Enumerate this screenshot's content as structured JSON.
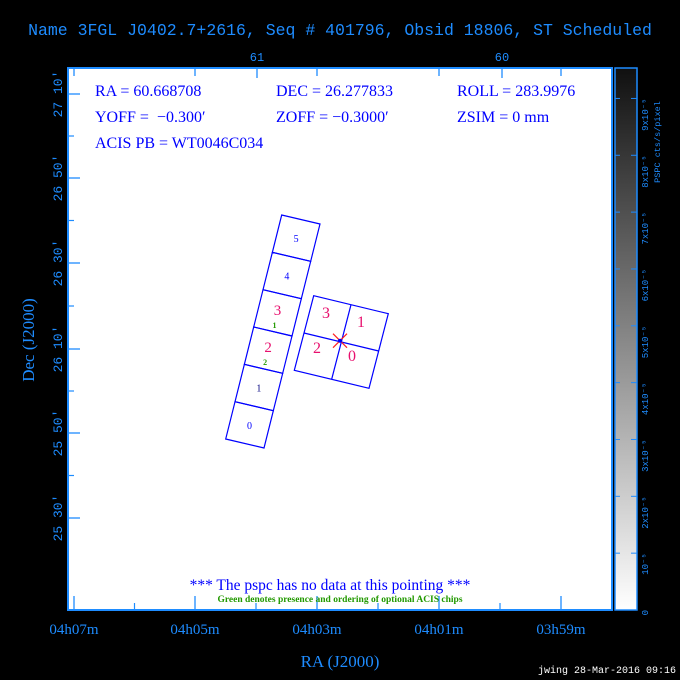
{
  "title": "Name 3FGL J0402.7+2616, Seq # 401796, Obsid 18806, ST Scheduled",
  "params": {
    "ra": "RA = 60.668708",
    "dec": "DEC = 26.277833",
    "roll": "ROLL = 283.9976",
    "yoff": "YOFF =  −0.300′",
    "zoff": "ZOFF = −0.3000′",
    "zsim": "ZSIM = 0 mm",
    "acis_pb": "ACIS PB = WT0046C034"
  },
  "notes": {
    "no_data": "*** The pspc has no data at this pointing ***",
    "optional": "Green denotes presence and ordering of optional ACIS chips"
  },
  "footer": "jwing 28-Mar-2016 09:16",
  "colors": {
    "axis": "#1e8cff",
    "text": "#0000ff",
    "chip_outline": "#0000ff",
    "imaging_label": "#e8106e",
    "optional_label": "#229900",
    "aimpoint": "#ff2020"
  },
  "chart_data": {
    "type": "scatter",
    "xlabel": "RA (J2000)",
    "ylabel": "Dec (J2000)",
    "x_ticks_bottom": [
      "04h07m",
      "04h05m",
      "04h03m",
      "04h01m",
      "03h59m"
    ],
    "x_ticks_top": [
      "61",
      "60"
    ],
    "y_ticks": [
      "27 10′",
      "26 50′",
      "26 30′",
      "26 10′",
      "25 50′",
      "25 30′"
    ],
    "colorbar": {
      "label": "PSPC cts/s/pixel",
      "ticks": [
        "0",
        "10⁻⁵",
        "2x10⁻⁵",
        "3x10⁻⁵",
        "4x10⁻⁵",
        "5x10⁻⁵",
        "6x10⁻⁵",
        "7x10⁻⁵",
        "8x10⁻⁵",
        "9x10⁻⁵"
      ],
      "range": [
        0,
        0.0001
      ]
    },
    "s_array_chips": [
      {
        "label": "0",
        "optional": null
      },
      {
        "label": "1",
        "optional": null
      },
      {
        "label": "2",
        "optional": "2"
      },
      {
        "label": "3",
        "optional": "1"
      },
      {
        "label": "4",
        "optional": null
      },
      {
        "label": "5",
        "optional": null
      }
    ],
    "i_array_chips": [
      "3",
      "1",
      "2",
      "0"
    ],
    "aimpoint": {
      "ra": 60.668708,
      "dec": 26.277833
    }
  }
}
